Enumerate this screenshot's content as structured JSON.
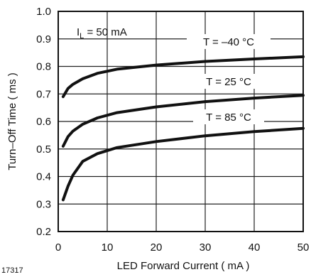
{
  "chart_data": {
    "type": "line",
    "xlabel": "LED Forward Current ( mA )",
    "ylabel": "Turn–Off Time  ( ms )",
    "xlim": [
      0,
      50
    ],
    "ylim": [
      0.2,
      1.0
    ],
    "x_ticks": [
      0,
      10,
      20,
      30,
      40,
      50
    ],
    "y_ticks": [
      0.2,
      0.3,
      0.4,
      0.5,
      0.6,
      0.7,
      0.8,
      0.9,
      1.0
    ],
    "x_tick_labels": [
      "0",
      "10",
      "20",
      "30",
      "40",
      "50"
    ],
    "y_tick_labels": [
      "0.2",
      "0.3",
      "0.4",
      "0.5",
      "0.6",
      "0.7",
      "0.8",
      "0.9",
      "1.0"
    ],
    "grid": true,
    "condition_label": "I",
    "condition_sub": "L",
    "condition_value": " = 50 mA",
    "figure_id": "17317",
    "series": [
      {
        "name": "T = –40 °C",
        "x": [
          1,
          2,
          3,
          5,
          8,
          12,
          20,
          30,
          40,
          50
        ],
        "y": [
          0.69,
          0.72,
          0.735,
          0.755,
          0.775,
          0.79,
          0.805,
          0.818,
          0.827,
          0.835
        ]
      },
      {
        "name": "T = 25 °C",
        "x": [
          1,
          2,
          3,
          5,
          8,
          12,
          20,
          30,
          40,
          50
        ],
        "y": [
          0.51,
          0.545,
          0.565,
          0.59,
          0.613,
          0.632,
          0.653,
          0.672,
          0.685,
          0.695
        ]
      },
      {
        "name": "T = 85 °C",
        "x": [
          1,
          2,
          3,
          5,
          8,
          12,
          20,
          30,
          40,
          50
        ],
        "y": [
          0.315,
          0.365,
          0.405,
          0.455,
          0.483,
          0.505,
          0.527,
          0.548,
          0.563,
          0.575
        ]
      }
    ]
  }
}
